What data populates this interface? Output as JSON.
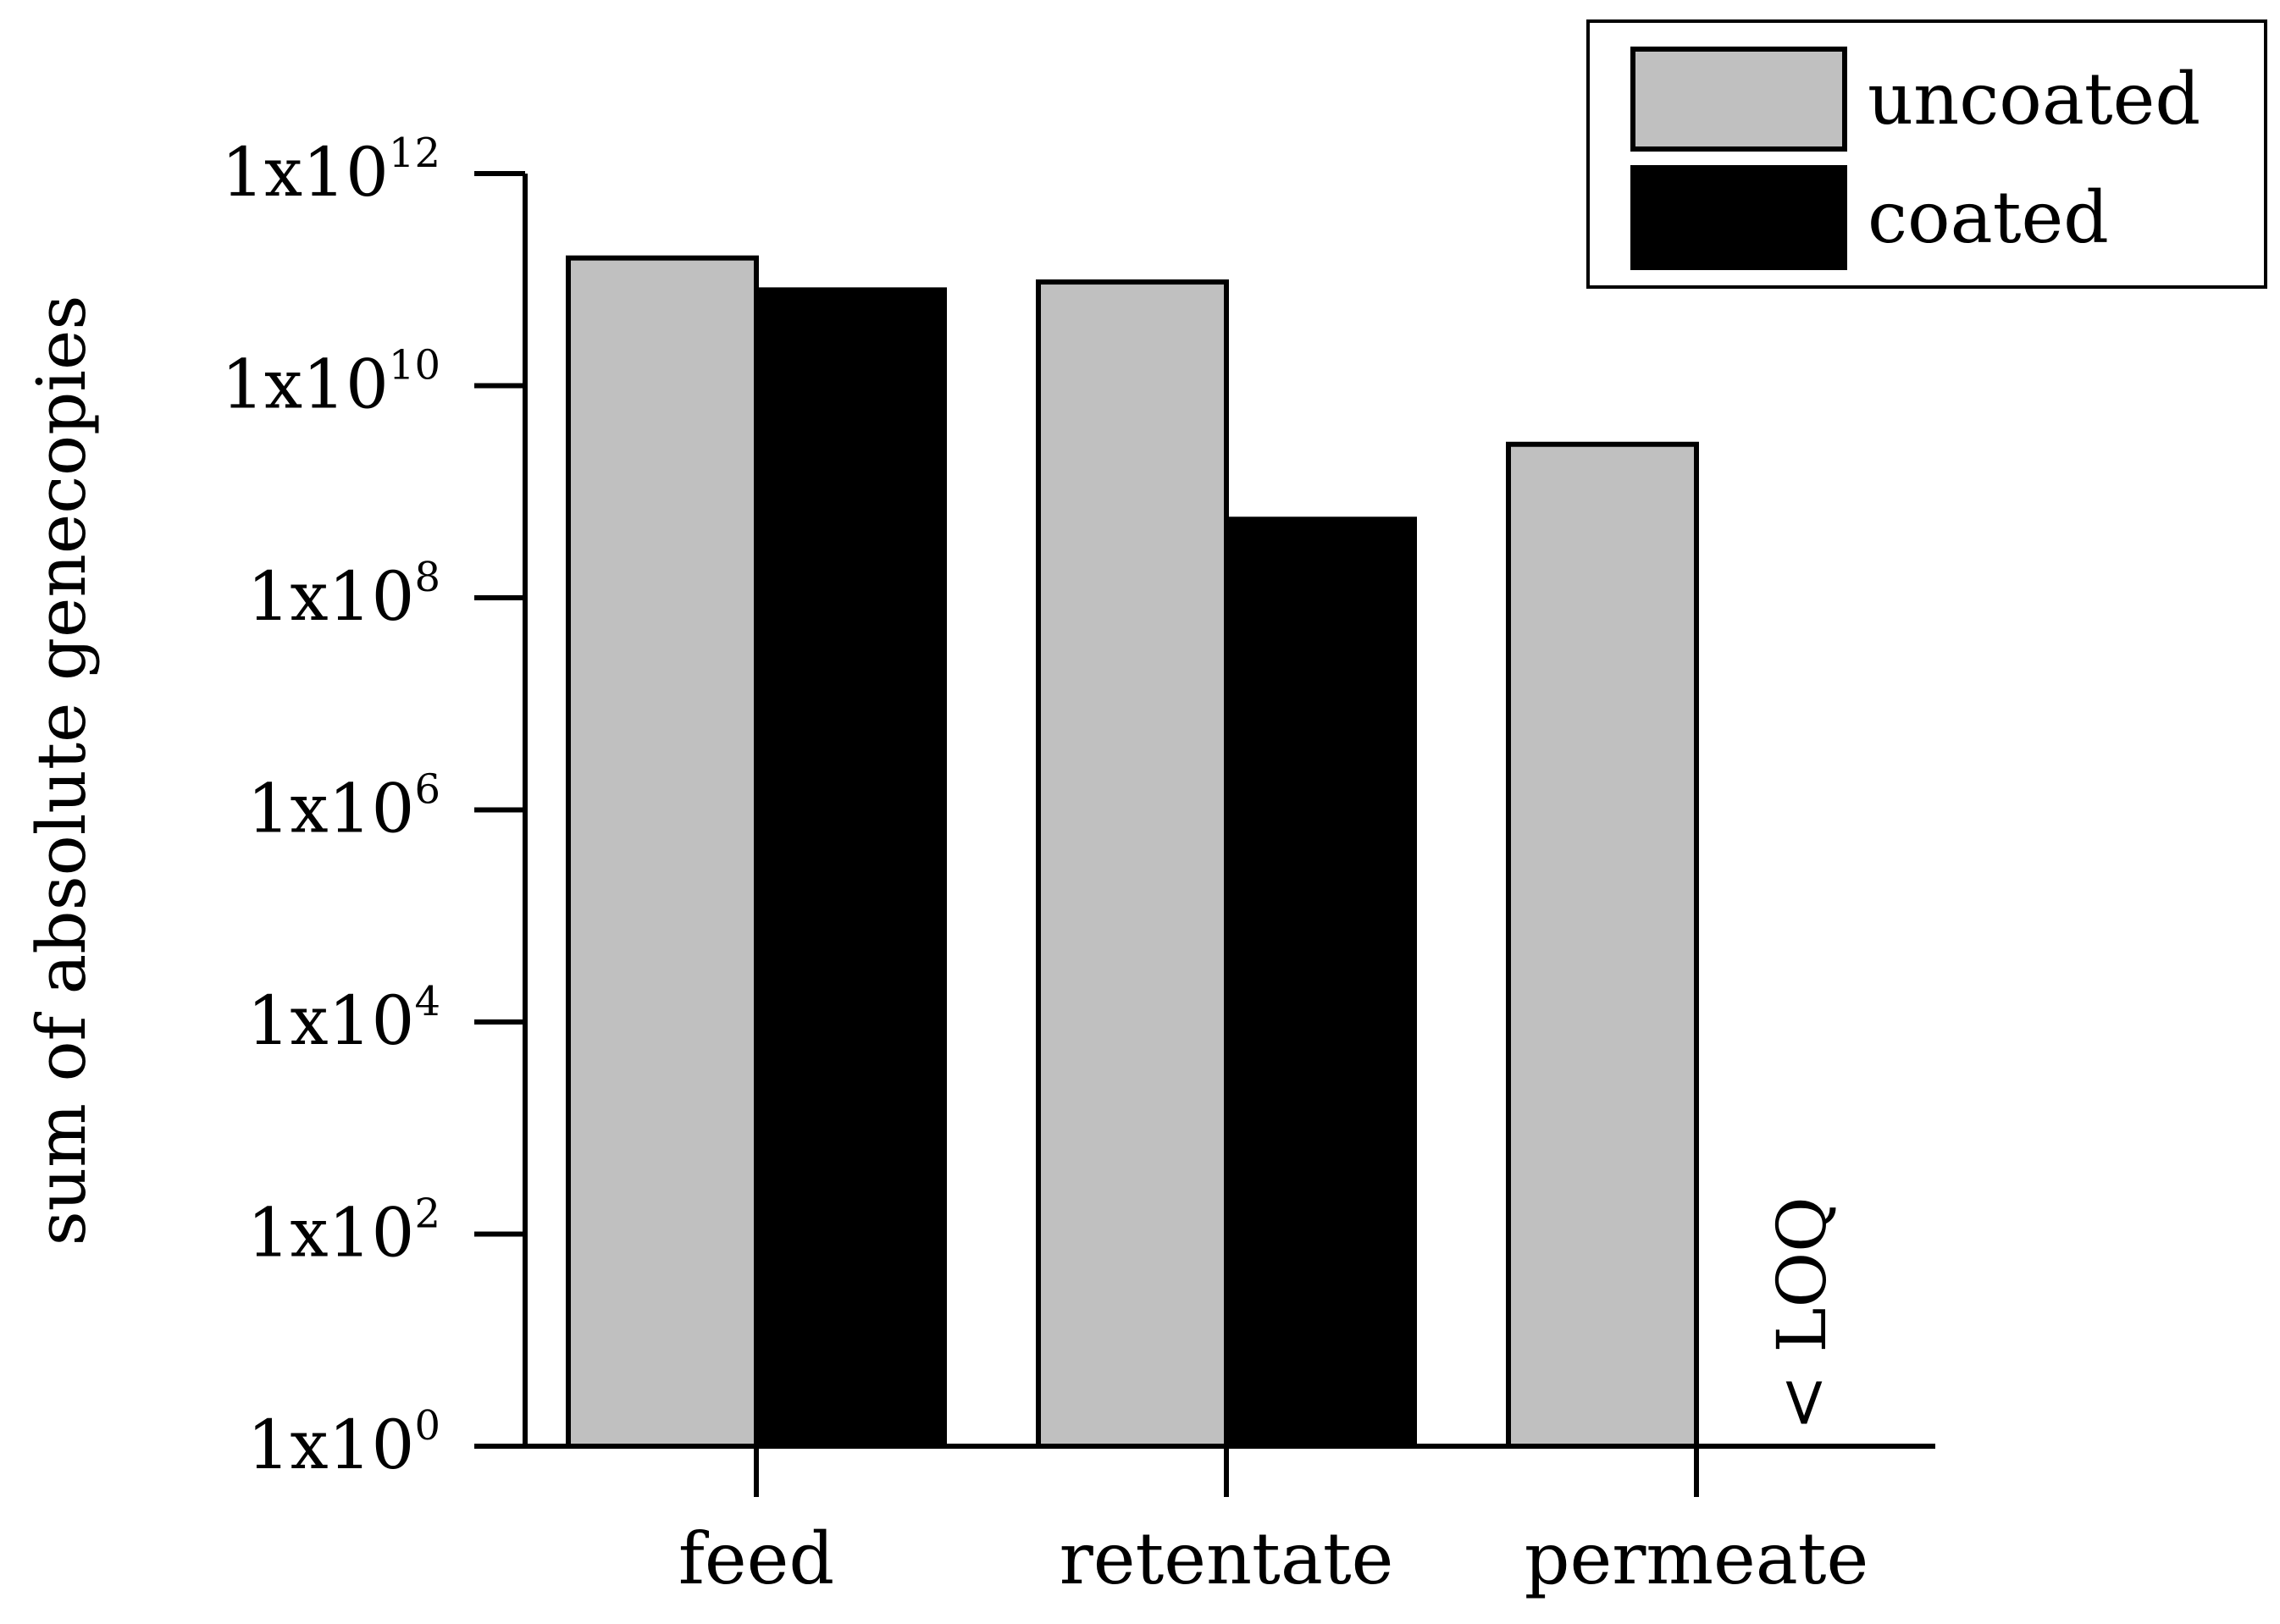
{
  "chart_data": {
    "type": "bar",
    "title": "",
    "xlabel": "",
    "ylabel": "sum of absolute genecopies",
    "yscale": "log",
    "ylim": [
      1,
      1000000000000
    ],
    "yticks": [
      {
        "base": "1x10",
        "exp": "0",
        "value": 1
      },
      {
        "base": "1x10",
        "exp": "2",
        "value": 100
      },
      {
        "base": "1x10",
        "exp": "4",
        "value": 10000
      },
      {
        "base": "1x10",
        "exp": "6",
        "value": 1000000
      },
      {
        "base": "1x10",
        "exp": "8",
        "value": 100000000
      },
      {
        "base": "1x10",
        "exp": "10",
        "value": 10000000000
      },
      {
        "base": "1x10",
        "exp": "12",
        "value": 1000000000000
      }
    ],
    "categories": [
      "feed",
      "retentate",
      "permeate"
    ],
    "series": [
      {
        "name": "uncoated",
        "color": "#c0c0c0",
        "values": [
          160000000000,
          95000000000,
          2800000000
        ]
      },
      {
        "name": "coated",
        "color": "#000000",
        "values": [
          80000000000,
          550000000,
          null
        ]
      }
    ],
    "annotations": [
      {
        "text": "< LOQ",
        "category": "permeate",
        "series": "coated"
      }
    ],
    "legend": {
      "position": "top-right"
    }
  }
}
